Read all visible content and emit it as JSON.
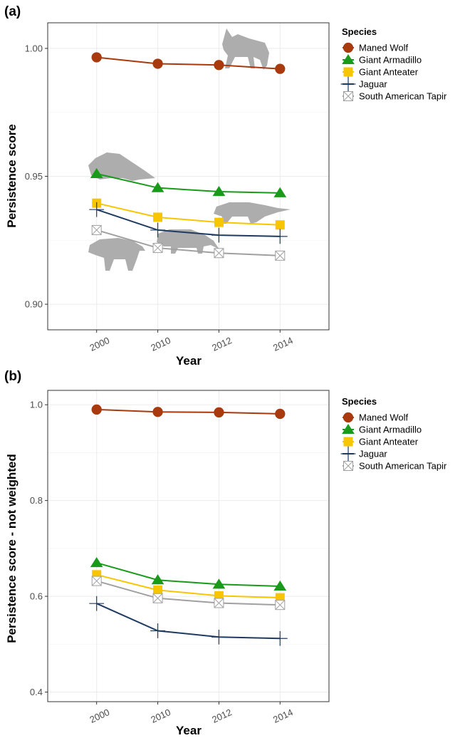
{
  "colors": {
    "maned_wolf": "#a83a0e",
    "giant_armadillo": "#1a9a1a",
    "giant_anteater": "#f7c600",
    "jaguar": "#1f3a60",
    "tapir": "#a0a0a0"
  },
  "chart_data": [
    {
      "type": "line",
      "panel_label": "(a)",
      "xlabel": "Year",
      "ylabel": "Persistence score",
      "categories": [
        "2000",
        "2010",
        "2012",
        "2014"
      ],
      "ylim": [
        0.89,
        1.01
      ],
      "yticks": [
        0.9,
        0.95,
        1.0
      ],
      "ytick_labels": [
        "0.90",
        "0.95",
        "1.00"
      ],
      "grid": true,
      "legend": {
        "title": "Species",
        "placement": "right",
        "entries": [
          "Maned Wolf",
          "Giant Armadillo",
          "Giant Anteater",
          "Jaguar",
          "South American Tapir"
        ]
      },
      "series": [
        {
          "name": "Maned Wolf",
          "marker": "circle",
          "color_key": "maned_wolf",
          "values": [
            0.9965,
            0.994,
            0.9935,
            0.992
          ]
        },
        {
          "name": "Giant Armadillo",
          "marker": "triangle",
          "color_key": "giant_armadillo",
          "values": [
            0.951,
            0.9455,
            0.944,
            0.9435
          ]
        },
        {
          "name": "Giant Anteater",
          "marker": "square",
          "color_key": "giant_anteater",
          "values": [
            0.9395,
            0.934,
            0.932,
            0.931
          ]
        },
        {
          "name": "Jaguar",
          "marker": "plus",
          "color_key": "jaguar",
          "values": [
            0.937,
            0.929,
            0.927,
            0.9265
          ]
        },
        {
          "name": "South American Tapir",
          "marker": "boxx",
          "color_key": "tapir",
          "values": [
            0.929,
            0.922,
            0.92,
            0.919
          ]
        }
      ]
    },
    {
      "type": "line",
      "panel_label": "(b)",
      "xlabel": "Year",
      "ylabel": "Persistence score - not weighted",
      "categories": [
        "2000",
        "2010",
        "2012",
        "2014"
      ],
      "ylim": [
        0.38,
        1.03
      ],
      "yticks": [
        0.4,
        0.6,
        0.8,
        1.0
      ],
      "ytick_labels": [
        "0.4",
        "0.6",
        "0.8",
        "1.0"
      ],
      "grid": true,
      "legend": {
        "title": "Species",
        "placement": "right",
        "entries": [
          "Maned Wolf",
          "Giant Armadillo",
          "Giant Anteater",
          "Jaguar",
          "South American Tapir"
        ]
      },
      "series": [
        {
          "name": "Maned Wolf",
          "marker": "circle",
          "color_key": "maned_wolf",
          "values": [
            0.99,
            0.985,
            0.984,
            0.981
          ]
        },
        {
          "name": "Giant Armadillo",
          "marker": "triangle",
          "color_key": "giant_armadillo",
          "values": [
            0.67,
            0.634,
            0.625,
            0.621
          ]
        },
        {
          "name": "Giant Anteater",
          "marker": "square",
          "color_key": "giant_anteater",
          "values": [
            0.645,
            0.613,
            0.601,
            0.597
          ]
        },
        {
          "name": "Jaguar",
          "marker": "plus",
          "color_key": "jaguar",
          "values": [
            0.585,
            0.528,
            0.515,
            0.512
          ]
        },
        {
          "name": "South American Tapir",
          "marker": "boxx",
          "color_key": "tapir",
          "values": [
            0.632,
            0.596,
            0.586,
            0.582
          ]
        }
      ]
    }
  ]
}
